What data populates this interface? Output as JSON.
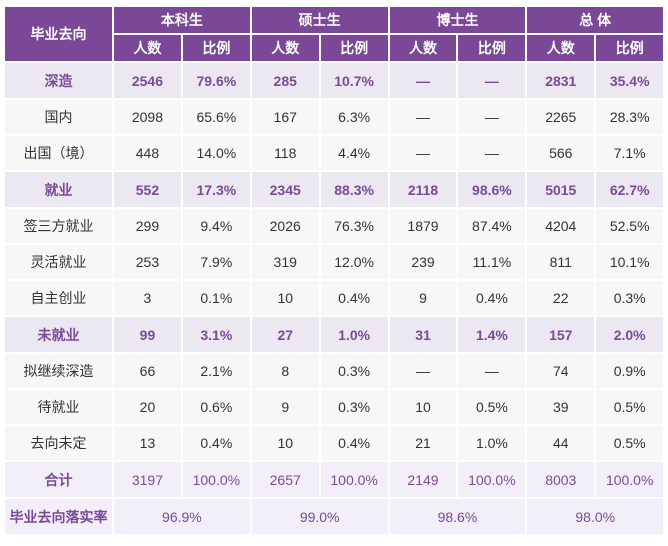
{
  "header": {
    "first_col": "毕业去向",
    "groups": [
      "本科生",
      "硕士生",
      "博士生",
      "总 体"
    ],
    "sub": [
      "人数",
      "比例"
    ]
  },
  "colors": {
    "header_bg": "#7b4797",
    "accent_text": "#7b4a96",
    "group_bg": "#ece8f1"
  },
  "rows": [
    {
      "type": "group",
      "label": "深造",
      "cells": [
        "2546",
        "79.6%",
        "285",
        "10.7%",
        "—",
        "—",
        "2831",
        "35.4%"
      ]
    },
    {
      "type": "plain",
      "label": "国内",
      "cells": [
        "2098",
        "65.6%",
        "167",
        "6.3%",
        "—",
        "—",
        "2265",
        "28.3%"
      ]
    },
    {
      "type": "plain",
      "label": "出国（境）",
      "cells": [
        "448",
        "14.0%",
        "118",
        "4.4%",
        "—",
        "—",
        "566",
        "7.1%"
      ]
    },
    {
      "type": "group",
      "label": "就业",
      "cells": [
        "552",
        "17.3%",
        "2345",
        "88.3%",
        "2118",
        "98.6%",
        "5015",
        "62.7%"
      ]
    },
    {
      "type": "plain",
      "label": "签三方就业",
      "cells": [
        "299",
        "9.4%",
        "2026",
        "76.3%",
        "1879",
        "87.4%",
        "4204",
        "52.5%"
      ]
    },
    {
      "type": "plain",
      "label": "灵活就业",
      "cells": [
        "253",
        "7.9%",
        "319",
        "12.0%",
        "239",
        "11.1%",
        "811",
        "10.1%"
      ]
    },
    {
      "type": "plain",
      "label": "自主创业",
      "cells": [
        "3",
        "0.1%",
        "10",
        "0.4%",
        "9",
        "0.4%",
        "22",
        "0.3%"
      ]
    },
    {
      "type": "group",
      "label": "未就业",
      "cells": [
        "99",
        "3.1%",
        "27",
        "1.0%",
        "31",
        "1.4%",
        "157",
        "2.0%"
      ]
    },
    {
      "type": "plain",
      "label": "拟继续深造",
      "cells": [
        "66",
        "2.1%",
        "8",
        "0.3%",
        "—",
        "—",
        "74",
        "0.9%"
      ]
    },
    {
      "type": "plain",
      "label": "待就业",
      "cells": [
        "20",
        "0.6%",
        "9",
        "0.3%",
        "10",
        "0.5%",
        "39",
        "0.5%"
      ]
    },
    {
      "type": "plain",
      "label": "去向未定",
      "cells": [
        "13",
        "0.4%",
        "10",
        "0.4%",
        "21",
        "1.0%",
        "44",
        "0.5%"
      ]
    },
    {
      "type": "total",
      "label": "合计",
      "cells": [
        "3197",
        "100.0%",
        "2657",
        "100.0%",
        "2149",
        "100.0%",
        "8003",
        "100.0%"
      ]
    }
  ],
  "rate": {
    "label": "毕业去向落实率",
    "values": [
      "96.9%",
      "99.0%",
      "98.6%",
      "98.0%"
    ]
  }
}
